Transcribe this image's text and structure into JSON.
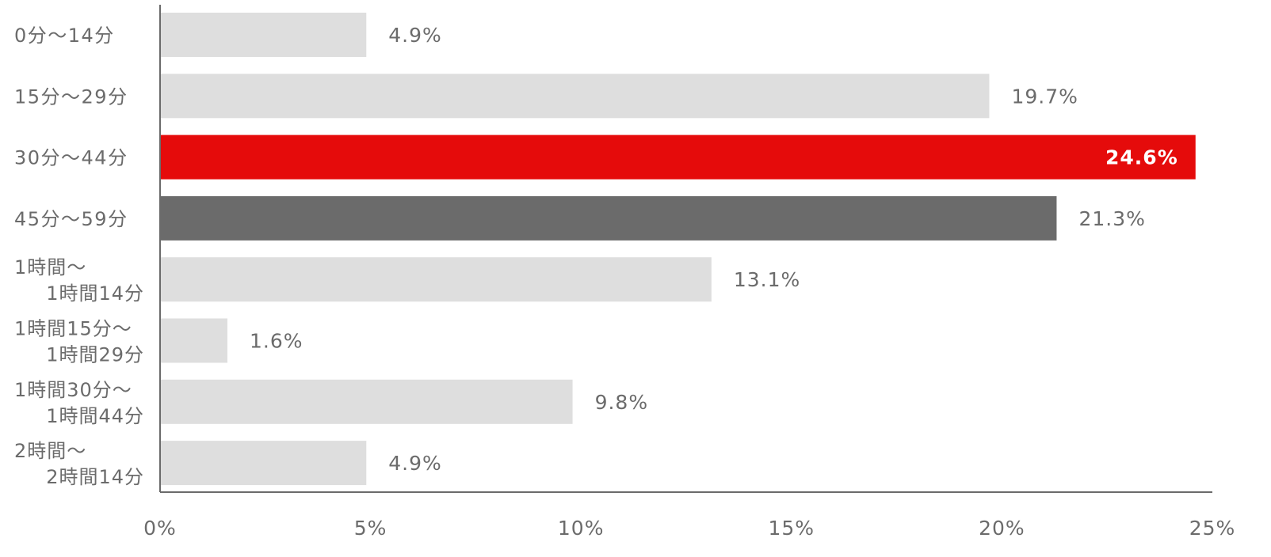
{
  "chart_data": {
    "type": "bar",
    "orientation": "horizontal",
    "categories": [
      [
        "0分〜14分"
      ],
      [
        "15分〜29分"
      ],
      [
        "30分〜44分"
      ],
      [
        "45分〜59分"
      ],
      [
        "1時間〜",
        "1時間14分"
      ],
      [
        "1時間15分〜",
        "1時間29分"
      ],
      [
        "1時間30分〜",
        "1時間44分"
      ],
      [
        "2時間〜",
        "2時間14分"
      ]
    ],
    "values": [
      4.9,
      19.7,
      24.6,
      21.3,
      13.1,
      1.6,
      9.8,
      4.9
    ],
    "value_labels": [
      "4.9%",
      "19.7%",
      "24.6%",
      "21.3%",
      "13.1%",
      "1.6%",
      "9.8%",
      "4.9%"
    ],
    "bar_colors": [
      "#dedede",
      "#dedede",
      "#e50b0b",
      "#6b6b6b",
      "#dedede",
      "#dedede",
      "#dedede",
      "#dedede"
    ],
    "label_colors": [
      "#6b6b6b",
      "#6b6b6b",
      "#ffffff",
      "#6b6b6b",
      "#6b6b6b",
      "#6b6b6b",
      "#6b6b6b",
      "#6b6b6b"
    ],
    "label_inside": [
      false,
      false,
      true,
      false,
      false,
      false,
      false,
      false
    ],
    "xlim": [
      0,
      25
    ],
    "x_ticks": [
      0,
      5,
      10,
      15,
      20,
      25
    ],
    "x_tick_labels": [
      "0%",
      "5%",
      "10%",
      "15%",
      "20%",
      "25%"
    ],
    "grid": false,
    "legend": "none",
    "axis_color": "#6b6b6b",
    "text_color": "#6b6b6b"
  }
}
